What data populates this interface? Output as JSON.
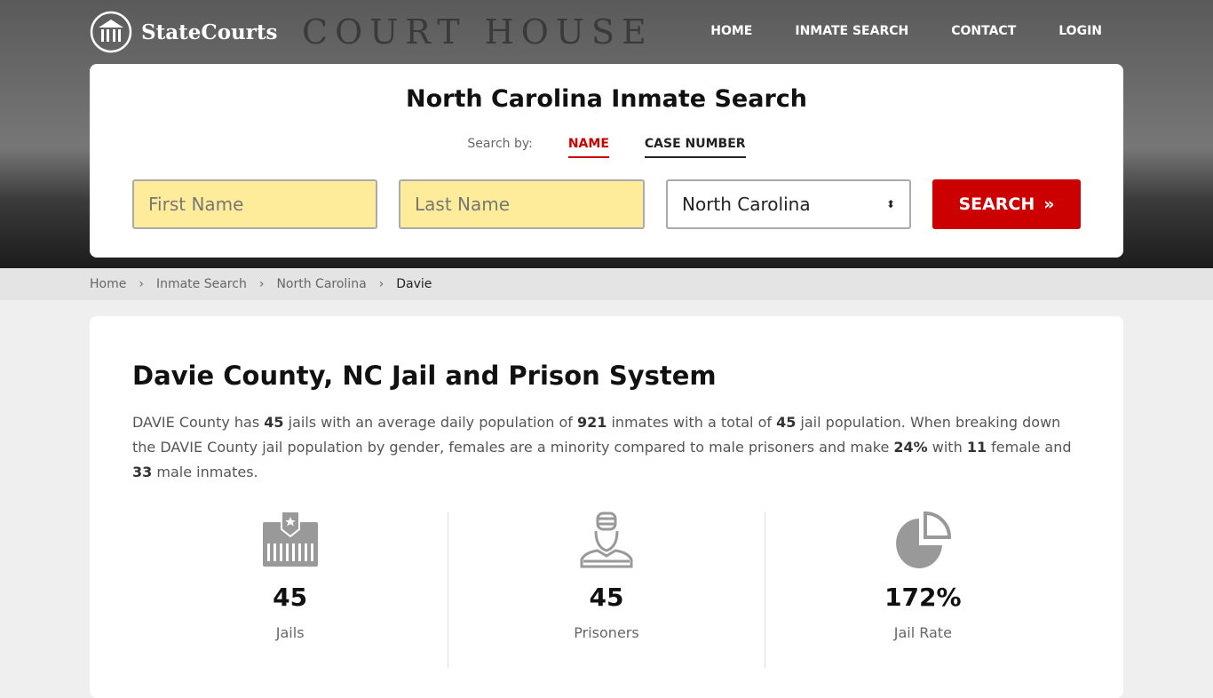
{
  "brand": "StateCourts",
  "hero_bg_text": "COURT HOUSE",
  "nav": [
    "HOME",
    "INMATE SEARCH",
    "CONTACT",
    "LOGIN"
  ],
  "search": {
    "title": "North Carolina Inmate Search",
    "search_by": "Search by:",
    "tabs": [
      "NAME",
      "CASE NUMBER"
    ],
    "first_placeholder": "First Name",
    "last_placeholder": "Last Name",
    "state": "North Carolina",
    "button": "SEARCH",
    "accent": "#cc0000"
  },
  "breadcrumb": [
    "Home",
    "Inmate Search",
    "North Carolina",
    "Davie"
  ],
  "main": {
    "title": "Davie County, NC Jail and Prison System",
    "p": [
      "DAVIE County has ",
      "45",
      " jails with an average daily population of ",
      "921",
      " inmates with a total of ",
      "45",
      " jail population. When breaking down the DAVIE County jail population by gender, females are a minority compared to male prisoners and make ",
      "24%",
      " with ",
      "11",
      " female and ",
      "33",
      " male inmates."
    ],
    "stats": [
      {
        "icon": "jail-icon",
        "value": "45",
        "label": "Jails"
      },
      {
        "icon": "prisoner-icon",
        "value": "45",
        "label": "Prisoners"
      },
      {
        "icon": "pie-chart-icon",
        "value": "172%",
        "label": "Jail Rate"
      }
    ]
  }
}
